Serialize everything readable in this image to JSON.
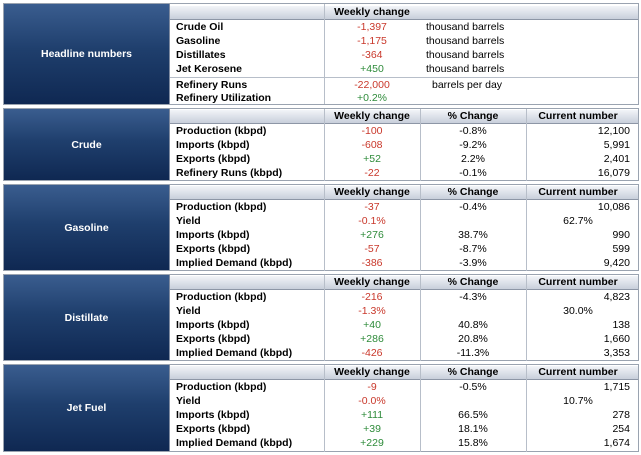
{
  "headline": {
    "label": "Headline numbers",
    "header": "Weekly change",
    "rows": [
      {
        "name": "Crude Oil",
        "change": "-1,397",
        "unit": "thousand barrels"
      },
      {
        "name": "Gasoline",
        "change": "-1,175",
        "unit": "thousand barrels"
      },
      {
        "name": "Distillates",
        "change": "-364",
        "unit": "thousand barrels"
      },
      {
        "name": "Jet Kerosene",
        "change": "+450",
        "unit": "thousand barrels"
      },
      {
        "name": "Refinery Runs",
        "change": "-22,000",
        "unit": "barrels per day"
      },
      {
        "name": "Refinery Utilization",
        "change": "+0.2%",
        "unit": ""
      }
    ]
  },
  "columns": {
    "weekly": "Weekly change",
    "pct": "% Change",
    "current": "Current number"
  },
  "crude": {
    "label": "Crude",
    "rows": [
      {
        "name": "Production (kbpd)",
        "change": "-100",
        "pct": "-0.8%",
        "current": "12,100"
      },
      {
        "name": "Imports (kbpd)",
        "change": "-608",
        "pct": "-9.2%",
        "current": "5,991"
      },
      {
        "name": "Exports (kbpd)",
        "change": "+52",
        "pct": "2.2%",
        "current": "2,401"
      },
      {
        "name": "Refinery Runs (kbpd)",
        "change": "-22",
        "pct": "-0.1%",
        "current": "16,079"
      }
    ]
  },
  "gasoline": {
    "label": "Gasoline",
    "rows": [
      {
        "name": "Production (kbpd)",
        "change": "-37",
        "pct": "-0.4%",
        "current": "10,086"
      },
      {
        "name": "Yield",
        "change": "-0.1%",
        "pct": "",
        "current": "62.7%"
      },
      {
        "name": "Imports (kbpd)",
        "change": "+276",
        "pct": "38.7%",
        "current": "990"
      },
      {
        "name": "Exports (kbpd)",
        "change": "-57",
        "pct": "-8.7%",
        "current": "599"
      },
      {
        "name": "Implied Demand (kbpd)",
        "change": "-386",
        "pct": "-3.9%",
        "current": "9,420"
      }
    ]
  },
  "distillate": {
    "label": "Distillate",
    "rows": [
      {
        "name": "Production (kbpd)",
        "change": "-216",
        "pct": "-4.3%",
        "current": "4,823"
      },
      {
        "name": "Yield",
        "change": "-1.3%",
        "pct": "",
        "current": "30.0%"
      },
      {
        "name": "Imports (kbpd)",
        "change": "+40",
        "pct": "40.8%",
        "current": "138"
      },
      {
        "name": "Exports (kbpd)",
        "change": "+286",
        "pct": "20.8%",
        "current": "1,660"
      },
      {
        "name": "Implied Demand (kbpd)",
        "change": "-426",
        "pct": "-11.3%",
        "current": "3,353"
      }
    ]
  },
  "jetfuel": {
    "label": "Jet Fuel",
    "rows": [
      {
        "name": "Production (kbpd)",
        "change": "-9",
        "pct": "-0.5%",
        "current": "1,715"
      },
      {
        "name": "Yield",
        "change": "-0.0%",
        "pct": "",
        "current": "10.7%"
      },
      {
        "name": "Imports (kbpd)",
        "change": "+111",
        "pct": "66.5%",
        "current": "278"
      },
      {
        "name": "Exports (kbpd)",
        "change": "+39",
        "pct": "18.1%",
        "current": "254"
      },
      {
        "name": "Implied Demand (kbpd)",
        "change": "+229",
        "pct": "15.8%",
        "current": "1,674"
      }
    ]
  },
  "colors": {
    "negative": "#c9382b",
    "positive": "#2e8b3a",
    "label_bg": "#1f3f6d"
  }
}
